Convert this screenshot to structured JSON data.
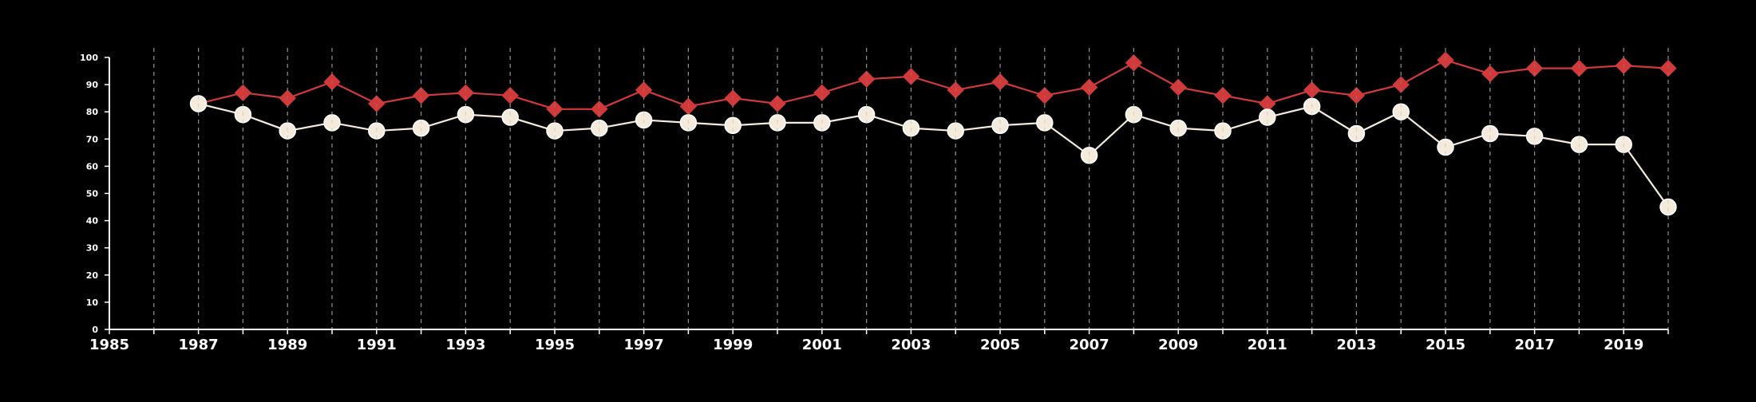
{
  "chart_data": {
    "type": "line",
    "title": "",
    "xlabel": "",
    "ylabel": "",
    "xlim": [
      1985,
      2020
    ],
    "ylim": [
      0,
      100
    ],
    "x_ticks": [
      1985,
      1987,
      1989,
      1991,
      1993,
      1995,
      1997,
      1999,
      2001,
      2003,
      2005,
      2007,
      2009,
      2011,
      2013,
      2015,
      2017,
      2019
    ],
    "y_ticks": [
      0,
      10,
      20,
      30,
      40,
      50,
      60,
      70,
      80,
      90,
      100
    ],
    "vertical_grid": "dashed, every year",
    "background_color": "#000000",
    "x": [
      1987,
      1988,
      1989,
      1990,
      1991,
      1992,
      1993,
      1994,
      1995,
      1996,
      1997,
      1998,
      1999,
      2000,
      2001,
      2002,
      2003,
      2004,
      2005,
      2006,
      2007,
      2008,
      2009,
      2010,
      2011,
      2012,
      2013,
      2014,
      2015,
      2016,
      2017,
      2018,
      2019,
      2020
    ],
    "series": [
      {
        "color": "#d13a3a",
        "marker": "diamond",
        "values": [
          83,
          87,
          85,
          91,
          83,
          86,
          87,
          86,
          81,
          81,
          88,
          82,
          85,
          83,
          87,
          92,
          93,
          88,
          91,
          86,
          89,
          98,
          89,
          86,
          83,
          88,
          86,
          90,
          99,
          94,
          96,
          96,
          97,
          96
        ]
      },
      {
        "color": "#f5ebdc",
        "marker": "circle",
        "values": [
          83,
          79,
          73,
          76,
          73,
          74,
          79,
          78,
          73,
          74,
          77,
          76,
          75,
          76,
          76,
          79,
          74,
          73,
          75,
          76,
          64,
          79,
          74,
          73,
          78,
          82,
          72,
          80,
          67,
          72,
          71,
          68,
          68,
          45
        ]
      }
    ]
  }
}
